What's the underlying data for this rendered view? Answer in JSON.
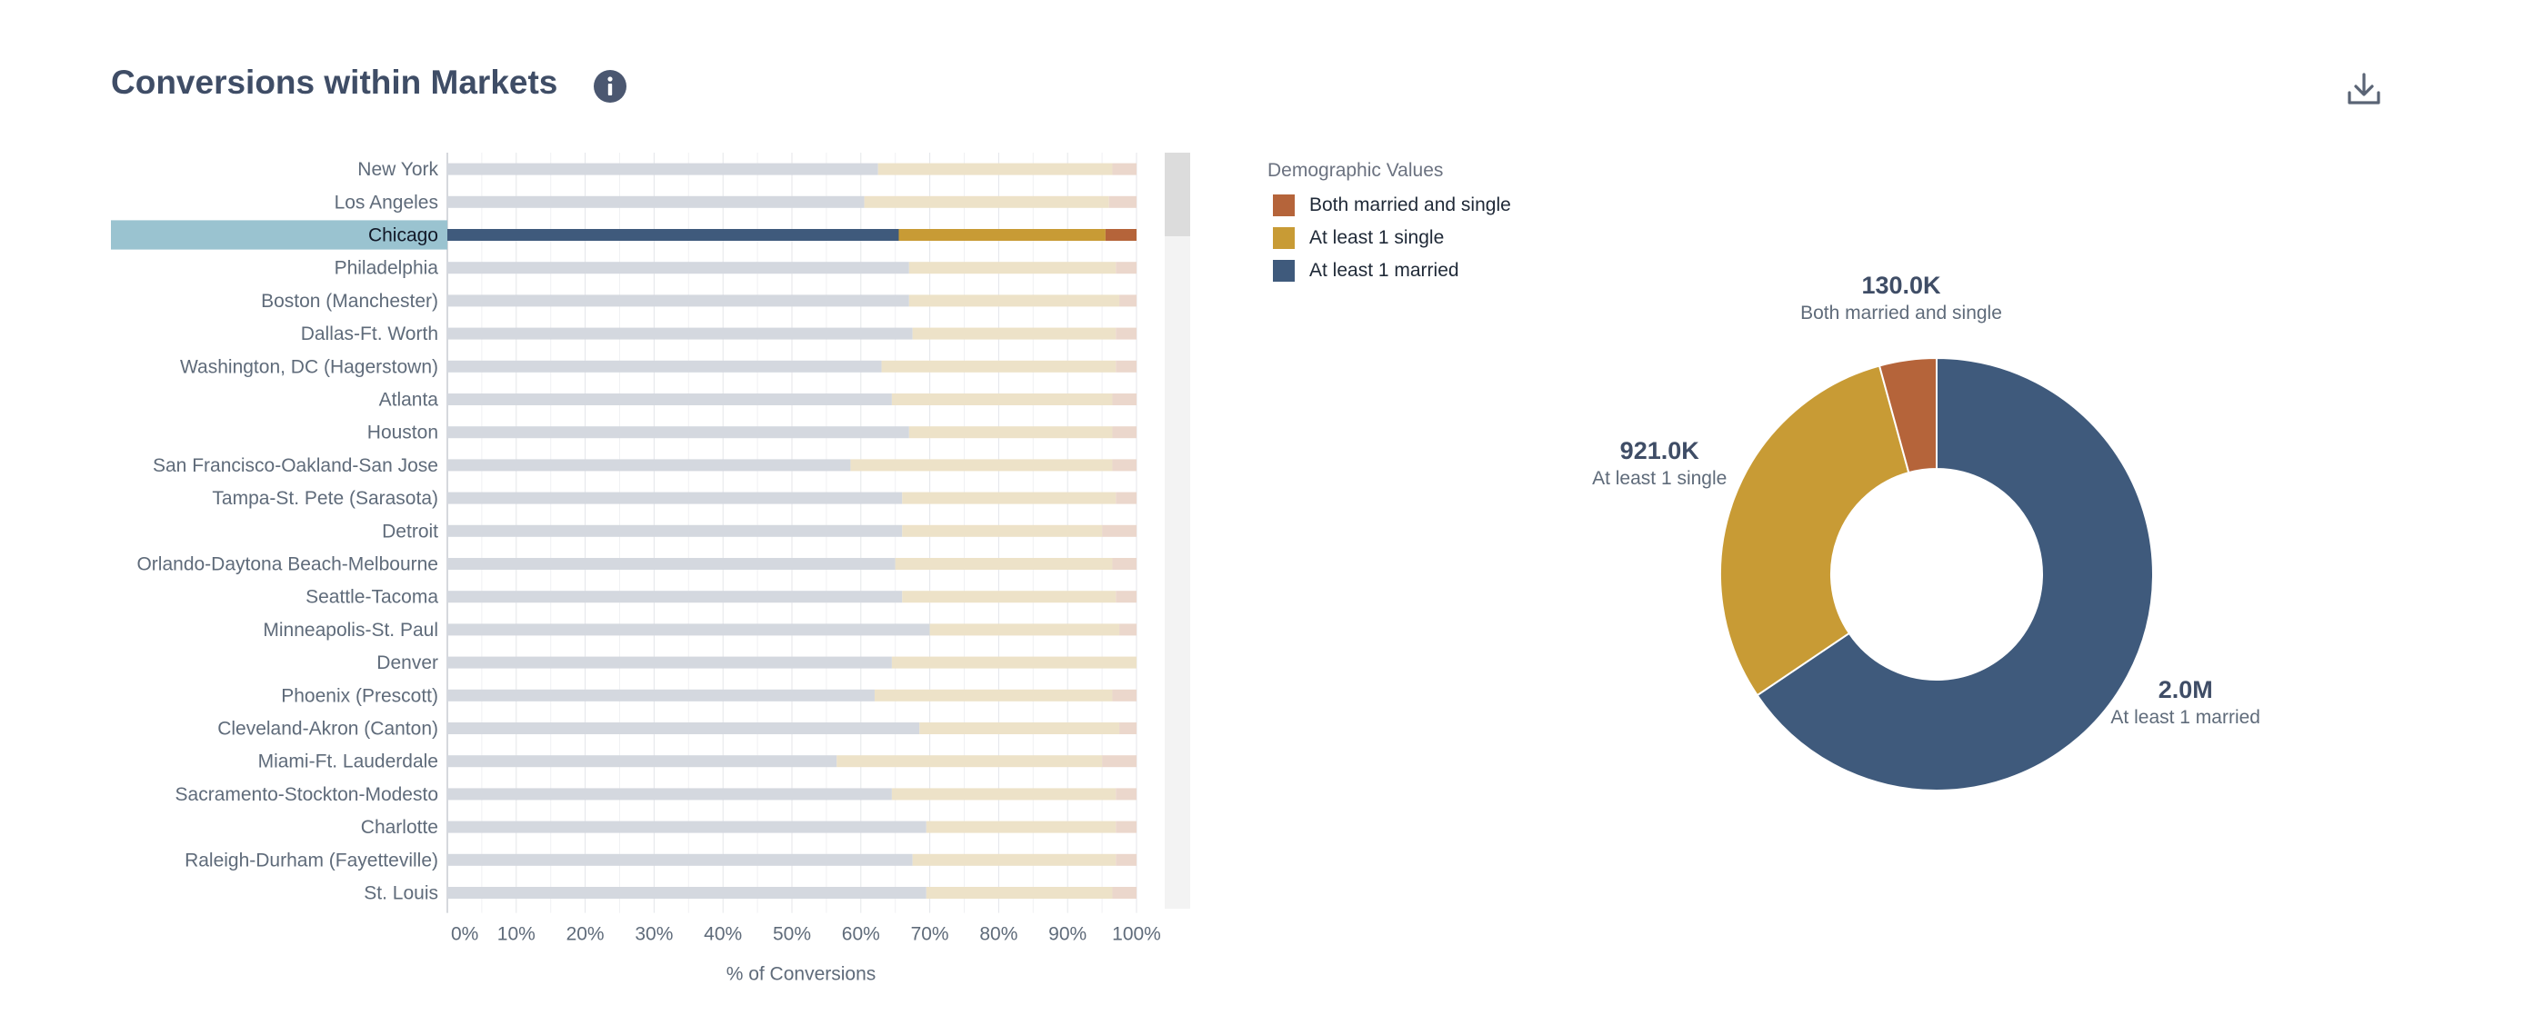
{
  "header": {
    "title": "Conversions within Markets",
    "info_icon": "info-icon",
    "download_icon": "download-icon"
  },
  "legend": {
    "title": "Demographic Values",
    "items": [
      {
        "label": "Both married and single",
        "color": "#b5643a"
      },
      {
        "label": "At least 1 single",
        "color": "#c89b35"
      },
      {
        "label": "At least 1 married",
        "color": "#3f5a7c"
      }
    ]
  },
  "colors": {
    "married": "#3f5a7c",
    "single": "#c89b35",
    "both": "#b5643a",
    "married_faded": "#d4d8df",
    "single_faded": "#ede2c8",
    "both_faded": "#ebd7cc",
    "highlight_row": "#9ac3d0"
  },
  "chart_data": [
    {
      "type": "bar",
      "orientation": "horizontal",
      "stacked": "percent",
      "selected_category": "Chicago",
      "xlabel": "% of Conversions",
      "xlim": [
        0,
        100
      ],
      "xticks": [
        "0%",
        "10%",
        "20%",
        "30%",
        "40%",
        "50%",
        "60%",
        "70%",
        "80%",
        "90%",
        "100%"
      ],
      "grid": true,
      "categories": [
        "New York",
        "Los Angeles",
        "Chicago",
        "Philadelphia",
        "Boston (Manchester)",
        "Dallas-Ft. Worth",
        "Washington, DC (Hagerstown)",
        "Atlanta",
        "Houston",
        "San Francisco-Oakland-San Jose",
        "Tampa-St. Pete (Sarasota)",
        "Detroit",
        "Orlando-Daytona Beach-Melbourne",
        "Seattle-Tacoma",
        "Minneapolis-St. Paul",
        "Denver",
        "Phoenix (Prescott)",
        "Cleveland-Akron (Canton)",
        "Miami-Ft. Lauderdale",
        "Sacramento-Stockton-Modesto",
        "Charlotte",
        "Raleigh-Durham (Fayetteville)",
        "St. Louis"
      ],
      "series": [
        {
          "name": "At least 1 married",
          "values": [
            62.5,
            60.5,
            65.5,
            67,
            67,
            67.5,
            63,
            64.5,
            67,
            58.5,
            66,
            66,
            65,
            66,
            70,
            64.5,
            62,
            68.5,
            56.5,
            64.5,
            69.5,
            67.5,
            69.5
          ]
        },
        {
          "name": "At least 1 single",
          "values": [
            34,
            35.5,
            30,
            30,
            30.5,
            29.5,
            34,
            32,
            29.5,
            38,
            31,
            29,
            31.5,
            31,
            27.5,
            35.5,
            34.5,
            29,
            38.5,
            32.5,
            27.5,
            29.5,
            27
          ]
        },
        {
          "name": "Both married and single",
          "values": [
            3.5,
            4,
            4.5,
            3,
            2.5,
            3,
            3,
            3.5,
            3.5,
            3.5,
            3,
            5,
            3.5,
            3,
            2.5,
            0,
            3.5,
            2.5,
            5,
            3,
            3,
            3,
            3.5
          ]
        }
      ]
    },
    {
      "type": "pie",
      "donut": true,
      "slices": [
        {
          "name": "At least 1 married",
          "value": 2000000,
          "display": "2.0M"
        },
        {
          "name": "At least 1 single",
          "value": 921000,
          "display": "921.0K"
        },
        {
          "name": "Both married and single",
          "value": 130000,
          "display": "130.0K"
        }
      ]
    }
  ]
}
